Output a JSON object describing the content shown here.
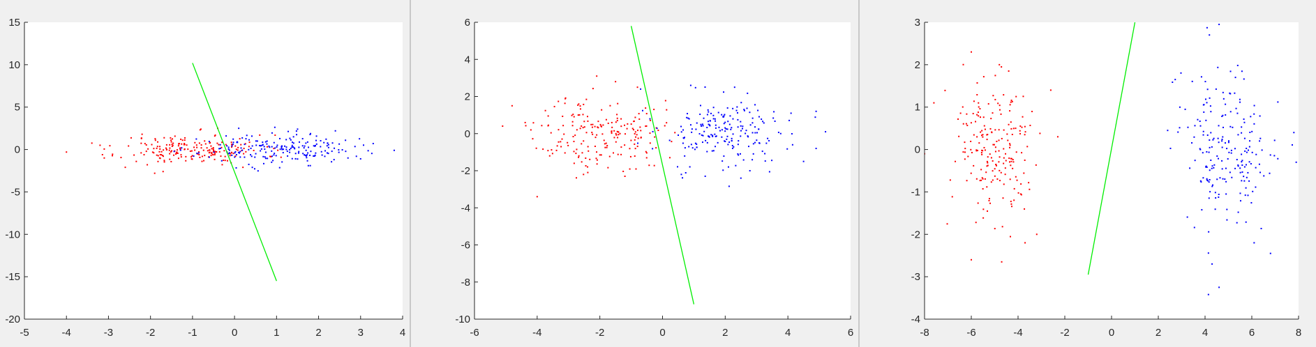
{
  "chart_data": [
    {
      "type": "scatter",
      "title": "",
      "xlabel": "",
      "ylabel": "",
      "xlim": [
        -5,
        4
      ],
      "ylim": [
        -20,
        15
      ],
      "grid": false,
      "x_ticks": [
        -5,
        -4,
        -3,
        -2,
        -1,
        0,
        1,
        2,
        3,
        4
      ],
      "y_ticks": [
        -20,
        -15,
        -10,
        -5,
        0,
        5,
        10,
        15
      ],
      "series": [
        {
          "color": "#ff0000",
          "marker": "dot",
          "cloud": {
            "center": [
              -1.0,
              0.0
            ],
            "spread": [
              0.85,
              0.85
            ],
            "count": 200,
            "seed": 11
          },
          "points": [
            [
              -4.0,
              -0.3
            ],
            [
              -3.2,
              0.5
            ],
            [
              -3.1,
              -1.0
            ],
            [
              -2.6,
              -2.1
            ],
            [
              -2.2,
              1.8
            ],
            [
              -1.9,
              -2.8
            ],
            [
              -1.7,
              -2.6
            ],
            [
              -0.8,
              2.4
            ],
            [
              -0.4,
              2.5
            ],
            [
              0.2,
              -2.1
            ],
            [
              0.6,
              1.7
            ]
          ]
        },
        {
          "color": "#0000ff",
          "marker": "dot",
          "cloud": {
            "center": [
              1.0,
              0.0
            ],
            "spread": [
              0.9,
              0.85
            ],
            "count": 200,
            "seed": 23
          },
          "points": [
            [
              3.8,
              -0.1
            ],
            [
              3.3,
              0.7
            ],
            [
              2.9,
              -0.8
            ],
            [
              2.7,
              -1.0
            ],
            [
              2.4,
              2.2
            ],
            [
              1.5,
              2.4
            ],
            [
              0.1,
              2.5
            ],
            [
              -0.6,
              -0.9
            ],
            [
              -0.2,
              1.6
            ],
            [
              3.0,
              -1.1
            ]
          ]
        },
        {
          "color": "#00ee00",
          "type": "line",
          "x": [
            -1.0,
            1.0
          ],
          "y": [
            10.2,
            -15.5
          ]
        }
      ]
    },
    {
      "type": "scatter",
      "title": "",
      "xlabel": "",
      "ylabel": "",
      "xlim": [
        -6,
        6
      ],
      "ylim": [
        -10,
        6
      ],
      "grid": false,
      "x_ticks": [
        -6,
        -4,
        -2,
        0,
        2,
        4,
        6
      ],
      "y_ticks": [
        -10,
        -8,
        -6,
        -4,
        -2,
        0,
        2,
        4,
        6
      ],
      "series": [
        {
          "color": "#ff0000",
          "marker": "dot",
          "cloud": {
            "center": [
              -2.0,
              0.0
            ],
            "spread": [
              1.0,
              1.0
            ],
            "count": 200,
            "seed": 37
          },
          "points": [
            [
              -4.8,
              1.5
            ],
            [
              -4.2,
              0.2
            ],
            [
              -4.0,
              -3.4
            ],
            [
              -2.1,
              3.1
            ],
            [
              -1.5,
              2.8
            ],
            [
              -0.8,
              2.5
            ],
            [
              -1.2,
              -2.3
            ],
            [
              -3.6,
              -1.2
            ]
          ]
        },
        {
          "color": "#0000ff",
          "marker": "dot",
          "cloud": {
            "center": [
              2.0,
              0.0
            ],
            "spread": [
              1.05,
              1.0
            ],
            "count": 200,
            "seed": 53
          },
          "points": [
            [
              5.2,
              0.1
            ],
            [
              4.9,
              1.2
            ],
            [
              4.9,
              -0.8
            ],
            [
              4.5,
              -1.5
            ],
            [
              4.1,
              1.1
            ],
            [
              0.9,
              2.6
            ],
            [
              2.3,
              2.5
            ],
            [
              2.5,
              -2.4
            ],
            [
              0.6,
              -2.2
            ],
            [
              -0.7,
              2.4
            ]
          ]
        },
        {
          "color": "#00ee00",
          "type": "line",
          "x": [
            -1.0,
            1.0
          ],
          "y": [
            5.8,
            -9.2
          ]
        }
      ]
    },
    {
      "type": "scatter",
      "title": "",
      "xlabel": "",
      "ylabel": "",
      "xlim": [
        -8,
        8
      ],
      "ylim": [
        -4,
        3
      ],
      "grid": false,
      "x_ticks": [
        -8,
        -6,
        -4,
        -2,
        0,
        2,
        4,
        6,
        8
      ],
      "y_ticks": [
        -4,
        -3,
        -2,
        -1,
        0,
        1,
        2,
        3
      ],
      "series": [
        {
          "color": "#ff0000",
          "marker": "dot",
          "cloud": {
            "center": [
              -5.0,
              0.0
            ],
            "spread": [
              0.95,
              0.85
            ],
            "count": 200,
            "seed": 71
          },
          "points": [
            [
              -6.0,
              2.3
            ],
            [
              -4.8,
              2.0
            ],
            [
              -4.4,
              1.85
            ],
            [
              -8.0,
              -0.1
            ],
            [
              -7.6,
              1.1
            ],
            [
              -6.0,
              -2.6
            ],
            [
              -4.7,
              -2.65
            ],
            [
              -3.7,
              -2.2
            ],
            [
              -2.3,
              0.3
            ],
            [
              -2.6,
              1.4
            ],
            [
              -3.2,
              -2.0
            ]
          ]
        },
        {
          "color": "#0000ff",
          "marker": "dot",
          "cloud": {
            "center": [
              5.0,
              0.0
            ],
            "spread": [
              1.0,
              0.95
            ],
            "count": 200,
            "seed": 89
          },
          "points": [
            [
              4.6,
              2.95
            ],
            [
              2.4,
              0.45
            ],
            [
              4.6,
              -3.25
            ],
            [
              4.3,
              -2.7
            ],
            [
              6.1,
              -2.2
            ],
            [
              6.8,
              -2.45
            ],
            [
              7.8,
              0.4
            ],
            [
              7.9,
              -0.3
            ],
            [
              5.3,
              1.7
            ]
          ]
        },
        {
          "color": "#00ee00",
          "type": "line",
          "x": [
            -1.0,
            1.0
          ],
          "y": [
            -2.95,
            3.0
          ]
        }
      ]
    }
  ]
}
